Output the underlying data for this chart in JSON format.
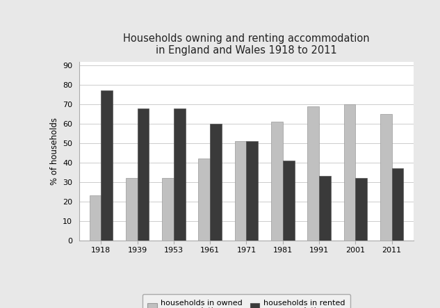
{
  "title_line1": "Households owning and renting accommodation",
  "title_line2": "in England and Wales 1918 to 2011",
  "years": [
    "1918",
    "1939",
    "1953",
    "1961",
    "1971",
    "1981",
    "1991",
    "2001",
    "2011"
  ],
  "owned": [
    23,
    32,
    32,
    42,
    51,
    61,
    69,
    70,
    65
  ],
  "rented": [
    77,
    68,
    68,
    60,
    51,
    41,
    33,
    32,
    37
  ],
  "owned_color": "#c0c0c0",
  "rented_color": "#3a3a3a",
  "ylabel": "% of households",
  "ylim": [
    0,
    92
  ],
  "yticks": [
    0,
    10,
    20,
    30,
    40,
    50,
    60,
    70,
    80,
    90
  ],
  "legend_owned": "households in owned\naccommodation",
  "legend_rented": "households in rented\naccommodation",
  "bar_width": 0.32,
  "page_bg_color": "#e8e8e8",
  "plot_bg_color": "#ffffff",
  "title_fontsize": 10.5,
  "axis_fontsize": 8.5,
  "tick_fontsize": 8,
  "legend_fontsize": 8
}
